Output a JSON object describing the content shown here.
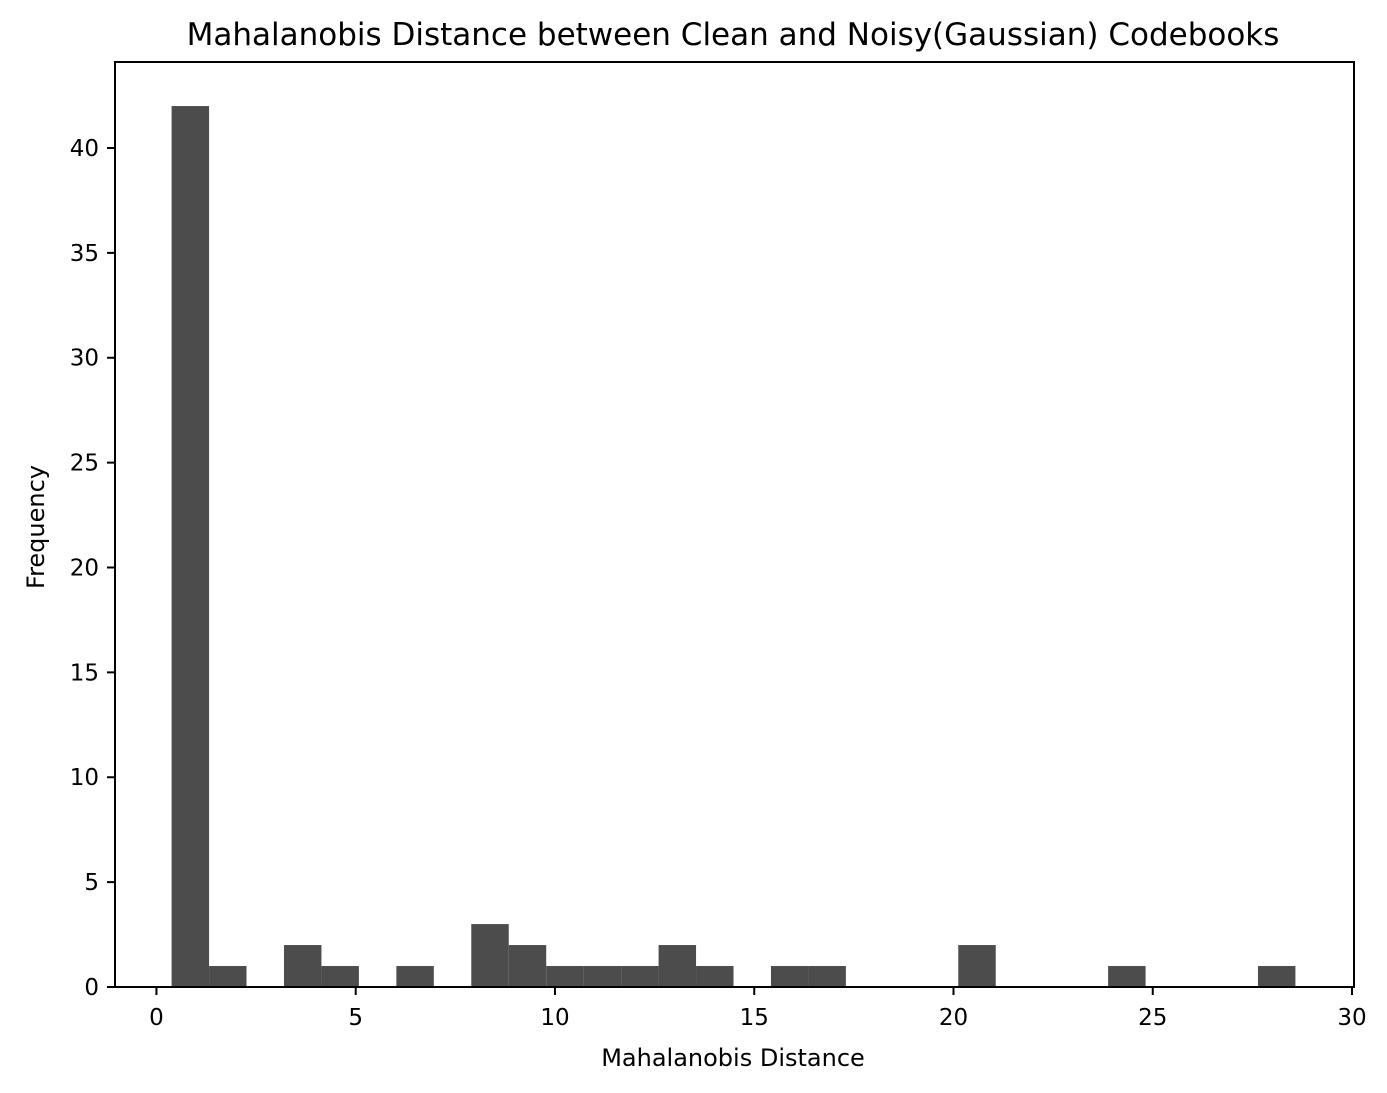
{
  "chart_data": {
    "type": "bar",
    "title": "Mahalanobis Distance between Clean and Noisy(Gaussian) Codebooks",
    "xlabel": "Mahalanobis Distance",
    "ylabel": "Frequency",
    "xlim": [
      -1.04,
      30.05
    ],
    "ylim": [
      0,
      44.1
    ],
    "xticks": [
      "0",
      "5",
      "10",
      "15",
      "20",
      "25",
      "30"
    ],
    "yticks": [
      "0",
      "5",
      "10",
      "15",
      "20",
      "25",
      "30",
      "35",
      "40"
    ],
    "bar_color": "#4c4c4c",
    "bin_width": 0.94,
    "bin_edges_start": [
      0.38,
      1.32,
      3.2,
      4.14,
      6.02,
      7.9,
      8.84,
      9.78,
      10.72,
      11.66,
      12.6,
      13.54,
      15.42,
      16.36,
      20.12,
      23.88,
      27.64
    ],
    "values": [
      42,
      1,
      2,
      1,
      1,
      3,
      2,
      1,
      1,
      1,
      2,
      1,
      1,
      1,
      2,
      1,
      1
    ],
    "grid": false
  }
}
